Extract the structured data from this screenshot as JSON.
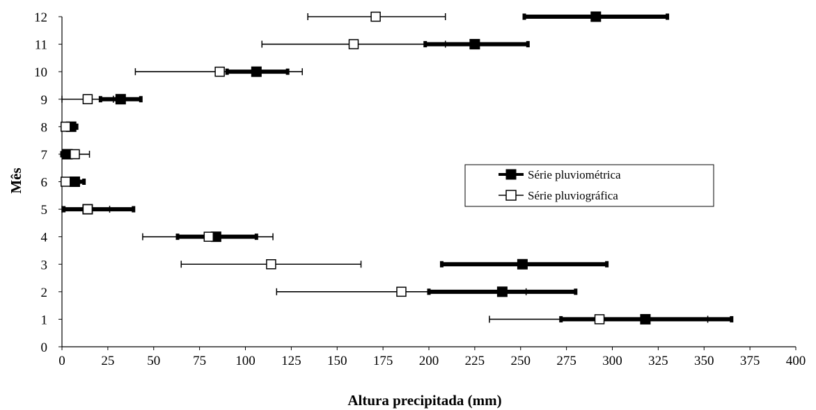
{
  "chart_data": {
    "type": "errorbar-horizontal",
    "xlabel": "Altura precipitada (mm)",
    "ylabel": "Mês",
    "xlim": [
      0,
      400
    ],
    "ylim": [
      0,
      12
    ],
    "xticks": [
      "0",
      "25",
      "50",
      "75",
      "100",
      "125",
      "150",
      "175",
      "200",
      "225",
      "250",
      "275",
      "300",
      "325",
      "350",
      "375",
      "400"
    ],
    "yticks": [
      "0",
      "1",
      "2",
      "3",
      "4",
      "5",
      "6",
      "7",
      "8",
      "9",
      "10",
      "11",
      "12"
    ],
    "grid": false,
    "legend_position": "right",
    "series": [
      {
        "name": "Série pluviométrica",
        "marker": "filled-square",
        "color": "#000000",
        "points": [
          {
            "month": 1,
            "mean": 318,
            "low": 272,
            "high": 365
          },
          {
            "month": 2,
            "mean": 240,
            "low": 200,
            "high": 280
          },
          {
            "month": 3,
            "mean": 251,
            "low": 207,
            "high": 297
          },
          {
            "month": 4,
            "mean": 84,
            "low": 63,
            "high": 106
          },
          {
            "month": 5,
            "mean": 14,
            "low": 1,
            "high": 39
          },
          {
            "month": 6,
            "mean": 7,
            "low": 1,
            "high": 12
          },
          {
            "month": 7,
            "mean": 3,
            "low": 0,
            "high": 6
          },
          {
            "month": 8,
            "mean": 5,
            "low": 1,
            "high": 8
          },
          {
            "month": 9,
            "mean": 32,
            "low": 21,
            "high": 43
          },
          {
            "month": 10,
            "mean": 106,
            "low": 90,
            "high": 123
          },
          {
            "month": 11,
            "mean": 225,
            "low": 198,
            "high": 254
          },
          {
            "month": 12,
            "mean": 291,
            "low": 252,
            "high": 330
          }
        ]
      },
      {
        "name": "Série pluviográfica",
        "marker": "open-square",
        "color": "#000000",
        "points": [
          {
            "month": 1,
            "mean": 293,
            "low": 233,
            "high": 352
          },
          {
            "month": 2,
            "mean": 185,
            "low": 117,
            "high": 253
          },
          {
            "month": 3,
            "mean": 114,
            "low": 65,
            "high": 163
          },
          {
            "month": 4,
            "mean": 80,
            "low": 44,
            "high": 115
          },
          {
            "month": 5,
            "mean": 14,
            "low": 0,
            "high": 26
          },
          {
            "month": 6,
            "mean": 2,
            "low": 0,
            "high": 5
          },
          {
            "month": 7,
            "mean": 7,
            "low": 0,
            "high": 15
          },
          {
            "month": 8,
            "mean": 2,
            "low": 0,
            "high": 4
          },
          {
            "month": 9,
            "mean": 14,
            "low": 0,
            "high": 28
          },
          {
            "month": 10,
            "mean": 86,
            "low": 40,
            "high": 131
          },
          {
            "month": 11,
            "mean": 159,
            "low": 109,
            "high": 209
          },
          {
            "month": 12,
            "mean": 171,
            "low": 134,
            "high": 209
          }
        ]
      }
    ]
  }
}
